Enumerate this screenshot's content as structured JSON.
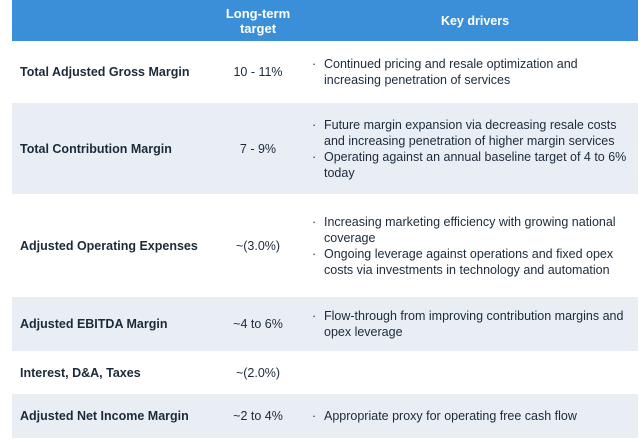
{
  "header": {
    "metric": "",
    "target": "Long-term\ntarget",
    "drivers": "Key drivers"
  },
  "bullet_char": "·",
  "colors": {
    "header_bg": "#3a8fd8",
    "row_shade": "#e9eef5",
    "text": "#1b2a3a"
  },
  "rows": [
    {
      "metric": "Total Adjusted Gross Margin",
      "target": "10 - 11%",
      "drivers": [
        "Continued pricing and resale optimization and increasing penetration of services"
      ]
    },
    {
      "metric": "Total Contribution Margin",
      "target": "7 - 9%",
      "drivers": [
        "Future margin expansion via decreasing resale costs and increasing penetration of higher margin services",
        "Operating against an annual baseline target of 4 to 6% today"
      ]
    },
    {
      "metric": "Adjusted Operating Expenses",
      "target": "~(3.0%)",
      "drivers": [
        "Increasing marketing efficiency with growing national coverage",
        "Ongoing leverage against operations and fixed opex costs via investments in technology and automation"
      ]
    },
    {
      "metric": "Adjusted EBITDA Margin",
      "target": "~4 to 6%",
      "drivers": [
        "Flow-through from improving contribution margins and opex leverage"
      ]
    },
    {
      "metric": "Interest, D&A, Taxes",
      "target": "~(2.0%)",
      "drivers": []
    },
    {
      "metric": "Adjusted Net Income Margin",
      "target": "~2 to 4%",
      "drivers": [
        "Appropriate proxy for operating free cash flow"
      ]
    }
  ]
}
